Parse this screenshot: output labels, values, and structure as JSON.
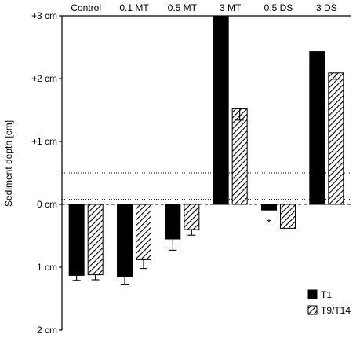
{
  "chart_data": {
    "type": "bar",
    "title": "",
    "ylabel": "Sediment depth [cm]",
    "xlabel": "",
    "ylim": [
      -2,
      3
    ],
    "ytick_values": [
      3,
      2,
      1,
      0,
      -1,
      -2
    ],
    "ytick_labels": [
      "+3 cm",
      "+2 cm",
      "+1 cm",
      "0 cm",
      "1 cm",
      "2 cm"
    ],
    "categories": [
      "Control",
      "0.1 MT",
      "0.5 MT",
      "3 MT",
      "0.5 DS",
      "3 DS"
    ],
    "series": [
      {
        "name": "T1",
        "fill": "solid-black",
        "values": [
          -1.13,
          -1.15,
          -0.55,
          3.0,
          -0.09,
          2.43
        ],
        "errors": [
          0.08,
          0.12,
          0.18,
          0.03,
          0.0,
          0.0
        ]
      },
      {
        "name": "T9/T14",
        "fill": "diagonal-hatch",
        "values": [
          -1.12,
          -0.88,
          -0.4,
          1.52,
          -0.38,
          2.09
        ],
        "errors": [
          0.08,
          0.14,
          0.09,
          0.18,
          0.0,
          0.1
        ]
      }
    ],
    "significance": [
      {
        "category": "3 MT",
        "series": "T1",
        "label": "*"
      },
      {
        "category": "0.5 DS",
        "series": "T1",
        "label": "*"
      },
      {
        "category": "3 DS",
        "series": "T1",
        "label": "*"
      }
    ],
    "reference_lines": [
      {
        "value": 0.5,
        "style": "dotted"
      },
      {
        "value": 0.08,
        "style": "dotted"
      },
      {
        "value": 0.0,
        "style": "dashed"
      }
    ],
    "legend": {
      "position": "bottom-right",
      "entries": [
        "T1",
        "T9/T14"
      ]
    },
    "grid": false,
    "colors": {
      "bar": "#000000",
      "hatch": "#000000",
      "background": "#ffffff"
    }
  }
}
